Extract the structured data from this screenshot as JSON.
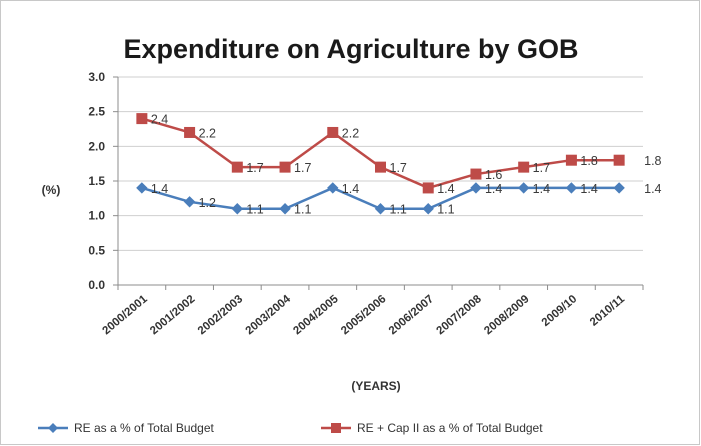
{
  "chart_data": {
    "type": "line",
    "title": "Expenditure on Agriculture by GOB",
    "xlabel": "(YEARS)",
    "ylabel": "(%)",
    "ylim": [
      0,
      3.0
    ],
    "yticks": [
      "0.0",
      "0.5",
      "1.0",
      "1.5",
      "2.0",
      "2.5",
      "3.0"
    ],
    "grid": true,
    "legend_position": "bottom",
    "categories": [
      "2000/2001",
      "2001/2002",
      "2002/2003",
      "2003/2004",
      "2004/2005",
      "2005/2006",
      "2006/2007",
      "2007/2008",
      "2008/2009",
      "2009/10",
      "2010/11"
    ],
    "series": [
      {
        "name": "RE as a % of Total Budget",
        "color": "#4a7ebb",
        "marker": "diamond",
        "values": [
          1.4,
          1.2,
          1.1,
          1.1,
          1.4,
          1.1,
          1.1,
          1.4,
          1.4,
          1.4,
          1.4
        ],
        "labels": [
          "1.4",
          "1.2",
          "1.1",
          "1.1",
          "1.4",
          "1.1",
          "1.1",
          "1.4",
          "1.4",
          "1.4",
          "1.4"
        ]
      },
      {
        "name": "RE + Cap II as a % of Total Budget",
        "color": "#be4b48",
        "marker": "square",
        "values": [
          2.4,
          2.2,
          1.7,
          1.7,
          2.2,
          1.7,
          1.4,
          1.6,
          1.7,
          1.8,
          1.8
        ],
        "labels": [
          "2.4",
          "2.2",
          "1.7",
          "1.7",
          "2.2",
          "1.7",
          "1.4",
          "1.6",
          "1.7",
          "1.8",
          "1.8"
        ]
      }
    ]
  }
}
